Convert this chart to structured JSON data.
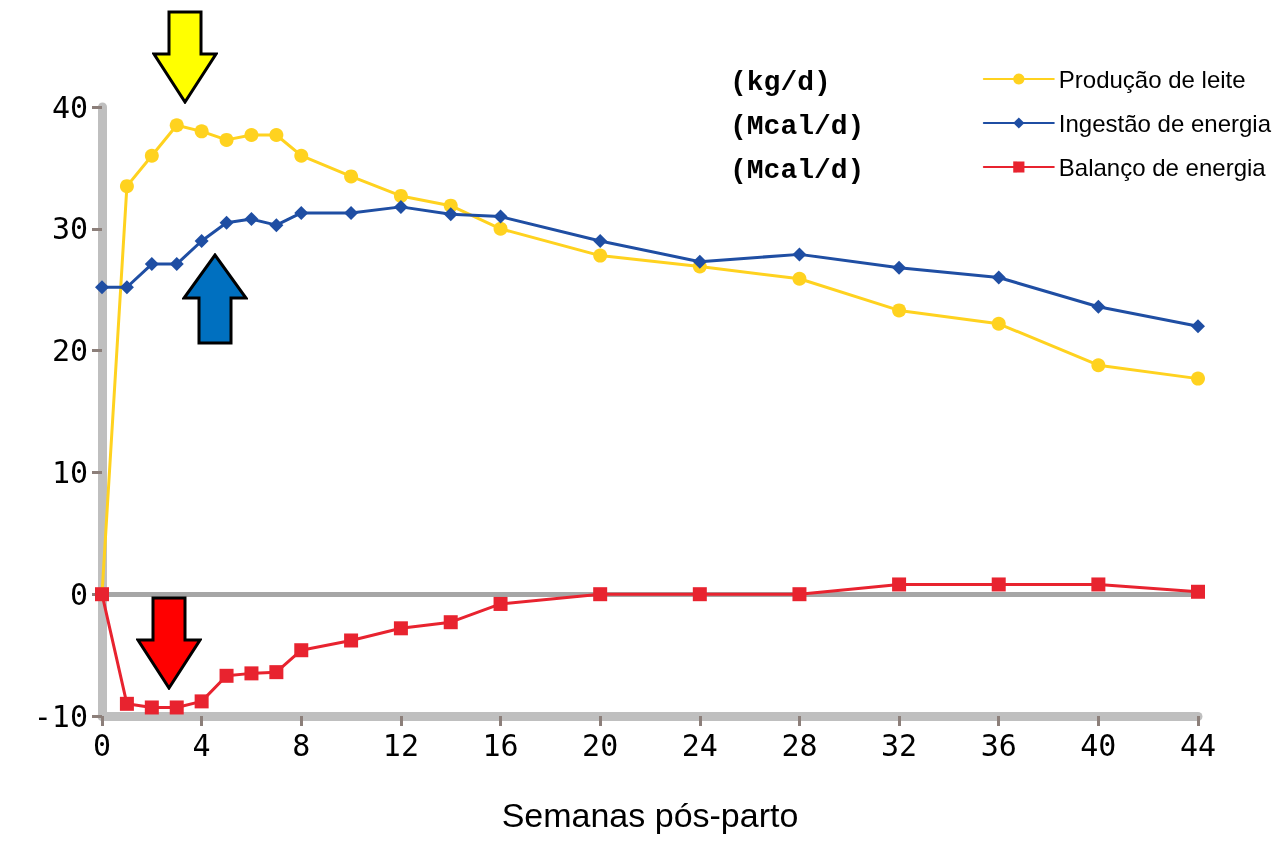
{
  "chart_data": {
    "type": "line",
    "xlabel": "Semanas pós-parto",
    "xlim": [
      0,
      44
    ],
    "xticks": [
      0,
      4,
      8,
      12,
      16,
      20,
      24,
      28,
      32,
      36,
      40,
      44
    ],
    "ylim": [
      -10,
      40
    ],
    "yticks": [
      -10,
      0,
      10,
      20,
      30,
      40
    ],
    "grid": false,
    "legend": "top right",
    "annotations": [
      "(kg/d)",
      "(Mcal/d)",
      "(Mcal/d)"
    ],
    "ref_lines": [
      {
        "axis": "y",
        "value": 0,
        "color": "#a6a6a6"
      }
    ],
    "x": [
      0,
      1,
      2,
      3,
      4,
      5,
      6,
      7,
      8,
      10,
      12,
      14,
      16,
      20,
      24,
      28,
      32,
      36,
      40,
      44
    ],
    "series": [
      {
        "name": "Produção de leite",
        "color": "#ffd21f",
        "marker": "circle",
        "values": [
          0,
          33.5,
          36,
          38.5,
          38,
          37.3,
          37.7,
          37.7,
          36,
          34.3,
          32.7,
          31.9,
          30,
          27.8,
          26.9,
          25.9,
          23.3,
          22.2,
          18.8,
          17.7
        ]
      },
      {
        "name": "Ingestão de energia",
        "color": "#1f4ea3",
        "marker": "diamond",
        "values": [
          25.2,
          25.2,
          27.1,
          27.1,
          29,
          30.5,
          30.8,
          30.3,
          31.3,
          31.3,
          31.8,
          31.2,
          31,
          29,
          27.3,
          27.9,
          26.8,
          26,
          23.6,
          22
        ]
      },
      {
        "name": "Balanço de energia",
        "color": "#e8232f",
        "marker": "square",
        "values": [
          0,
          -9,
          -9.3,
          -9.3,
          -8.8,
          -6.7,
          -6.5,
          -6.4,
          -4.6,
          -3.8,
          -2.8,
          -2.3,
          -0.8,
          0,
          0,
          0,
          0.8,
          0.8,
          0.8,
          0.2
        ]
      }
    ]
  }
}
